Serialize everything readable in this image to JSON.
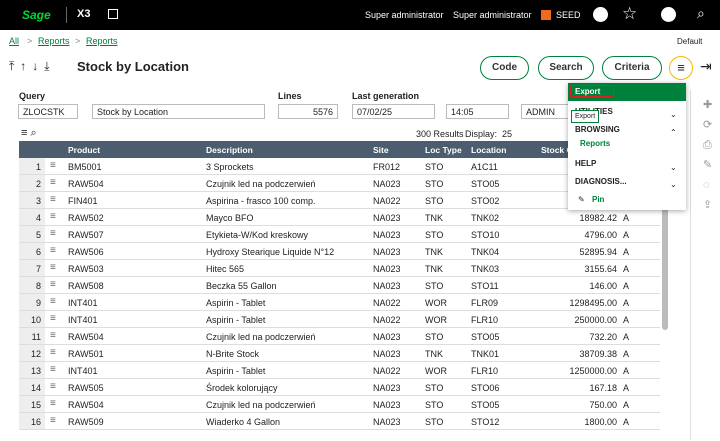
{
  "topbar": {
    "logo": "Sage",
    "product": "X3",
    "user1": "Super administrator",
    "user2": "Super administrator",
    "folder": "SEED"
  },
  "breadcrumb": {
    "items": [
      "All",
      "Reports",
      "Reports"
    ],
    "view": "Default"
  },
  "header": {
    "title": "Stock by Location",
    "buttons": [
      "Code",
      "Search",
      "Criteria"
    ]
  },
  "fields": {
    "query_label": "Query",
    "query_code": "ZLOCSTK",
    "query_name": "Stock by Location",
    "lines_label": "Lines",
    "lines": "5576",
    "generation_label": "Last generation",
    "date": "07/02/25",
    "time": "14:05",
    "user": "ADMIN"
  },
  "toolbar": {
    "results": "300 Results",
    "display_label": "Display:",
    "display": "25"
  },
  "table": {
    "columns": [
      "Product",
      "Description",
      "Site",
      "Loc Type",
      "Location",
      "Stock Q"
    ],
    "rows": [
      [
        "1",
        "BM5001",
        "3 Sprockets",
        "FR012",
        "STO",
        "A1C11"
      ],
      [
        "2",
        "RAW504",
        "Czujnik led na podczerwień",
        "NA023",
        "STO",
        "STO05"
      ],
      [
        "3",
        "FIN401",
        "Aspirina - frasco 100 comp.",
        "NA022",
        "STO",
        "STO02"
      ],
      [
        "4",
        "RAW502",
        "Mayco BFO",
        "NA023",
        "TNK",
        "TNK02",
        "18982.42",
        "A"
      ],
      [
        "5",
        "RAW507",
        "Etykieta-W/Kod kreskowy",
        "NA023",
        "STO",
        "STO10",
        "4796.00",
        "A"
      ],
      [
        "6",
        "RAW506",
        "Hydroxy Stearique Liquide N°12",
        "NA023",
        "TNK",
        "TNK04",
        "52895.94",
        "A"
      ],
      [
        "7",
        "RAW503",
        "Hitec 565",
        "NA023",
        "TNK",
        "TNK03",
        "3155.64",
        "A"
      ],
      [
        "8",
        "RAW508",
        "Beczka 55 Gallon",
        "NA023",
        "STO",
        "STO11",
        "146.00",
        "A"
      ],
      [
        "9",
        "INT401",
        "Aspirin - Tablet",
        "NA022",
        "WOR",
        "FLR09",
        "1298495.00",
        "A"
      ],
      [
        "10",
        "INT401",
        "Aspirin - Tablet",
        "NA022",
        "WOR",
        "FLR10",
        "250000.00",
        "A"
      ],
      [
        "11",
        "RAW504",
        "Czujnik led na podczerwień",
        "NA023",
        "STO",
        "STO05",
        "732.20",
        "A"
      ],
      [
        "12",
        "RAW501",
        "N-Brite Stock",
        "NA023",
        "TNK",
        "TNK01",
        "38709.38",
        "A"
      ],
      [
        "13",
        "INT401",
        "Aspirin - Tablet",
        "NA022",
        "WOR",
        "FLR10",
        "1250000.00",
        "A"
      ],
      [
        "14",
        "RAW505",
        "Środek kolorujący",
        "NA023",
        "STO",
        "STO06",
        "167.18",
        "A"
      ],
      [
        "15",
        "RAW504",
        "Czujnik led na podczerwień",
        "NA023",
        "STO",
        "STO05",
        "750.00",
        "A"
      ],
      [
        "16",
        "RAW509",
        "Wiaderko 4 Gallon",
        "NA023",
        "STO",
        "STO12",
        "1800.00",
        "A"
      ]
    ]
  },
  "menu": {
    "export": "Export",
    "utilities": "UTILITIES",
    "tooltip": "Export",
    "browsing": "BROWSING",
    "reports": "Reports",
    "help": "HELP",
    "diagnosis": "DIAGNOSIS...",
    "pin": "Pin"
  }
}
